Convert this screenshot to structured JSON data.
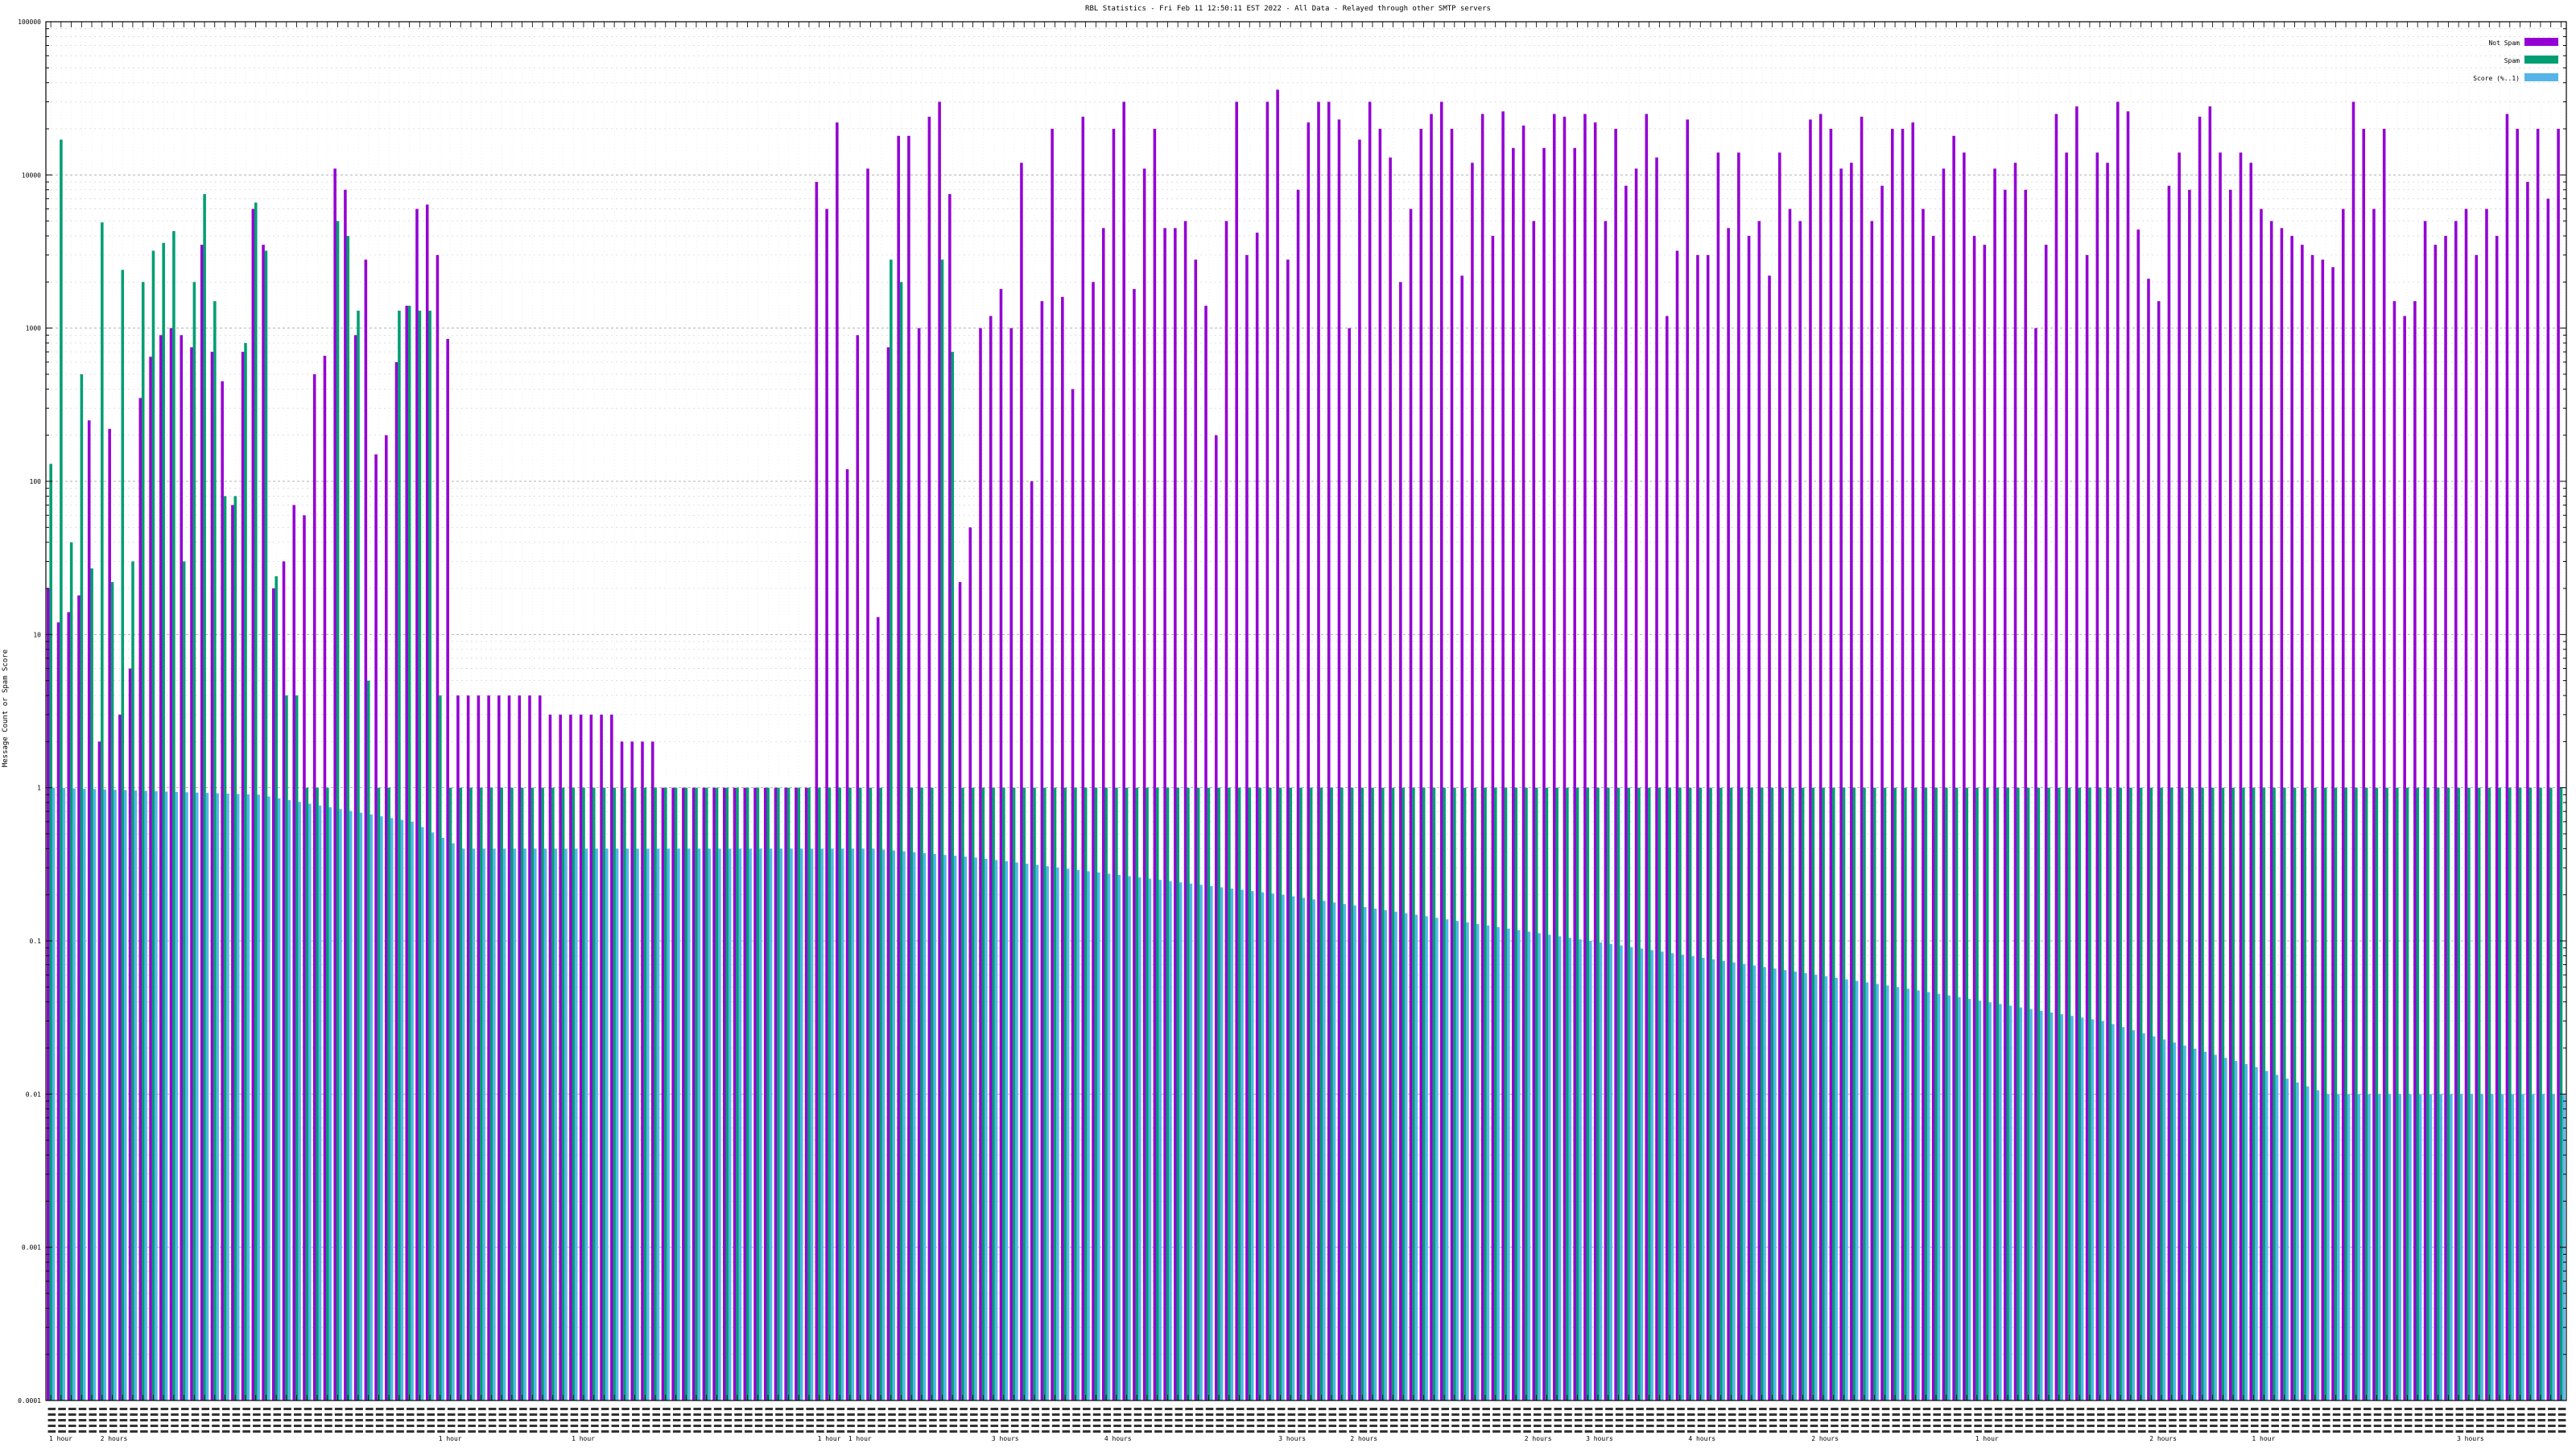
{
  "chart_data": {
    "type": "bar",
    "title": "RBL Statistics - Fri Feb 11 12:50:11 EST 2022 - All Data - Relayed through other SMTP servers",
    "xlabel": "",
    "ylabel": "Message Count or Spam Score",
    "scale": "log",
    "ylim": [
      0.0001,
      100000
    ],
    "y_ticks": [
      "0.0001",
      "0.001",
      "0.01",
      "0.1",
      "1",
      "10",
      "100",
      "1000",
      "10000",
      "100000"
    ],
    "grid": true,
    "legend_position": "top-right",
    "legend": [
      {
        "name": "Not Spam",
        "color": "#9400d3"
      },
      {
        "name": "Spam",
        "color": "#009e73"
      },
      {
        "name": "Score (%..1)",
        "color": "#56b4e9"
      }
    ],
    "x_labels_legible": false,
    "bottom_labels": [
      {
        "text": "1 hour",
        "group": 0
      },
      {
        "text": "2 hours",
        "group": 5
      },
      {
        "text": "1 hour",
        "group": 38
      },
      {
        "text": "1 hour",
        "group": 51
      },
      {
        "text": "1 hour",
        "group": 75
      },
      {
        "text": "1 hour",
        "group": 78
      },
      {
        "text": "3 hours",
        "group": 92
      },
      {
        "text": "4 hours",
        "group": 103
      },
      {
        "text": "3 hours",
        "group": 120
      },
      {
        "text": "2 hours",
        "group": 127
      },
      {
        "text": "2 hours",
        "group": 144
      },
      {
        "text": "3 hours",
        "group": 150
      },
      {
        "text": "4 hours",
        "group": 160
      },
      {
        "text": "2 hours",
        "group": 172
      },
      {
        "text": "1 hour",
        "group": 188
      },
      {
        "text": "2 hours",
        "group": 205
      },
      {
        "text": "1 hour",
        "group": 215
      },
      {
        "text": "3 hours",
        "group": 235
      },
      {
        "text": "4 hours",
        "group": 250
      },
      {
        "text": "1 hour",
        "group": 262
      }
    ],
    "series": [
      {
        "name": "Not Spam",
        "values": [
          20,
          12,
          14,
          18,
          250,
          2,
          220,
          3,
          6,
          350,
          650,
          900,
          1000,
          900,
          750,
          3500,
          700,
          450,
          70,
          700,
          6000,
          3500,
          20,
          30,
          70,
          60,
          500,
          660,
          11000,
          8000,
          900,
          2800,
          150,
          200,
          600,
          1400,
          6000,
          6400,
          3000,
          850,
          4,
          4,
          4,
          4,
          4,
          4,
          4,
          4,
          4,
          3,
          3,
          3,
          3,
          3,
          3,
          3,
          2,
          2,
          2,
          2,
          1,
          1,
          1,
          1,
          1,
          1,
          1,
          1,
          1,
          1,
          1,
          1,
          1,
          1,
          1,
          9000,
          6000,
          22000,
          120,
          900,
          11000,
          13,
          750,
          18000,
          18000,
          1000,
          24000,
          30000,
          7500,
          22,
          50,
          1000,
          1200,
          1800,
          1000,
          12000,
          100,
          1500,
          20000,
          1600,
          400,
          24000,
          2000,
          4500,
          20000,
          30000,
          1800,
          11000,
          20000,
          4500,
          4500,
          5000,
          2800,
          1400,
          200,
          5000,
          30000,
          3000,
          4200,
          30000,
          36000,
          2800,
          8000,
          22000,
          30000,
          30000,
          23000,
          1000,
          17000,
          30000,
          20000,
          13000,
          2000,
          6000,
          20000,
          25000,
          30000,
          20000,
          2200,
          12000,
          25000,
          4000,
          26000,
          15000,
          21000,
          5000,
          15000,
          25000,
          24000,
          15000,
          25000,
          22000,
          5000,
          20000,
          8500,
          11000,
          25000,
          13000,
          1200,
          3200,
          23000,
          3000,
          3000,
          14000,
          4500,
          14000,
          4000,
          5000,
          2200,
          14000,
          6000,
          5000,
          23000,
          25000,
          20000,
          11000,
          12000,
          24000,
          5000,
          8500,
          20000,
          20000,
          22000,
          6000,
          4000,
          11000,
          18000,
          14000,
          4000,
          3500,
          11000,
          8000,
          12000,
          8000,
          1000,
          3500,
          25000,
          14000,
          28000,
          3000,
          14000,
          12000,
          30000,
          26000,
          4400,
          2100,
          1500,
          8500,
          14000,
          8000,
          24000,
          28000,
          14000,
          8000,
          14000,
          12000,
          6000,
          5000,
          4500,
          4000,
          3500,
          3000,
          2800,
          2500,
          6000,
          30000,
          20000,
          6000,
          20000,
          1500,
          1200,
          1500,
          5000,
          3500,
          4000,
          5000,
          6000,
          3000,
          6000,
          4000,
          25000,
          20000,
          9000,
          20000,
          7000,
          20000
        ]
      },
      {
        "name": "Spam",
        "values": [
          130,
          17000,
          40,
          500,
          27,
          4900,
          22,
          2400,
          30,
          2000,
          3200,
          3600,
          4300,
          30,
          2000,
          7500,
          1500,
          80,
          80,
          800,
          6600,
          3200,
          24,
          4,
          4,
          1,
          1,
          1,
          5000,
          4000,
          1300,
          5,
          1,
          1,
          1300,
          1400,
          1300,
          1300,
          4,
          1,
          1,
          1,
          1,
          1,
          1,
          1,
          1,
          1,
          1,
          1,
          1,
          1,
          1,
          1,
          1,
          1,
          1,
          1,
          1,
          1,
          1,
          1,
          1,
          1,
          1,
          1,
          1,
          1,
          1,
          1,
          1,
          1,
          1,
          1,
          1,
          1,
          1,
          1,
          1,
          1,
          1,
          1,
          2800,
          2000,
          1,
          1,
          1,
          2800,
          700,
          1,
          1,
          1,
          1,
          1,
          1,
          1,
          1,
          1,
          1,
          1,
          1,
          1,
          1,
          1,
          1,
          1,
          1,
          1,
          1,
          1,
          1,
          1,
          1,
          1,
          1,
          1,
          1,
          1,
          1,
          1,
          1,
          1,
          1,
          1,
          1,
          1,
          1,
          1,
          1,
          1,
          1,
          1,
          1,
          1,
          1,
          1,
          1,
          1,
          1,
          1,
          1,
          1,
          1,
          1,
          1,
          1,
          1,
          1,
          1,
          1,
          1,
          1,
          1,
          1,
          1,
          1,
          1,
          1,
          1,
          1,
          1,
          1,
          1,
          1,
          1,
          1,
          1,
          1,
          1,
          1,
          1,
          1,
          1,
          1,
          1,
          1,
          1,
          1,
          1,
          1,
          1,
          1,
          1,
          1,
          1,
          1,
          1,
          1,
          1,
          1,
          1,
          1,
          1,
          1,
          1,
          1,
          1,
          1,
          1,
          1,
          1,
          1,
          1,
          1,
          1,
          1,
          1,
          1,
          1,
          1,
          1,
          1,
          1,
          1,
          1,
          1,
          1,
          1,
          1,
          1,
          1,
          1,
          1,
          1,
          1,
          1,
          1,
          1,
          1,
          1,
          1,
          1,
          1,
          1,
          1,
          1,
          1,
          1,
          1,
          1,
          1,
          1,
          1,
          1,
          1,
          1,
          1,
          1,
          1,
          1,
          1,
          1,
          1,
          1,
          1,
          1,
          1,
          1,
          1,
          1,
          1,
          1,
          1,
          1,
          1,
          1,
          1,
          1,
          1,
          1,
          1,
          1,
          1,
          1,
          1,
          1,
          1,
          1,
          1,
          1,
          1,
          1,
          1,
          1,
          1,
          1,
          1,
          1,
          1,
          1,
          1,
          1,
          1
        ]
      },
      {
        "name": "Score (%..1)",
        "values": [
          1,
          1,
          1,
          1,
          1,
          1,
          1,
          1,
          1,
          1,
          1,
          1,
          1,
          1,
          1,
          1,
          1,
          1,
          1,
          1,
          1,
          1,
          1,
          1,
          1,
          1,
          1,
          1,
          1,
          1,
          1,
          1,
          1,
          1,
          1,
          1,
          1,
          1,
          1,
          1,
          1,
          1,
          1,
          1,
          1,
          1,
          1,
          1,
          1,
          1,
          1,
          1,
          1,
          1,
          1,
          1,
          1,
          1,
          1,
          1,
          1,
          1,
          1,
          1,
          1,
          1,
          1,
          1,
          1,
          1,
          1,
          1,
          1,
          1,
          1,
          1,
          1,
          1,
          1,
          1,
          1,
          1,
          1,
          1,
          1,
          1,
          1,
          1,
          1,
          1,
          1,
          1,
          1,
          1,
          1,
          1,
          1,
          1,
          1,
          1,
          1,
          1,
          1,
          1,
          1,
          1,
          1,
          1,
          1,
          1,
          1,
          1,
          1,
          1,
          1,
          1,
          1,
          1,
          1,
          1,
          1,
          1,
          1,
          1,
          1,
          1,
          1,
          1,
          1,
          1,
          1,
          1,
          1,
          1,
          1,
          1,
          1,
          1,
          1,
          1,
          1,
          1,
          1,
          1,
          1,
          1,
          1,
          1,
          1,
          1,
          1,
          1,
          1,
          1,
          1,
          1,
          1,
          1,
          1,
          1,
          1,
          1,
          1,
          1,
          1,
          1,
          1,
          1,
          1,
          1,
          1,
          1,
          1,
          1,
          1,
          1,
          1,
          1,
          1,
          1,
          1,
          1,
          1,
          1,
          1,
          1,
          1,
          1,
          1,
          1,
          1,
          1,
          1,
          1,
          1,
          1,
          1,
          1,
          1,
          1,
          1,
          1,
          1,
          1,
          1,
          1,
          1,
          1,
          1,
          1,
          1,
          1,
          1,
          1,
          1,
          1,
          1,
          1,
          1,
          1,
          1,
          1,
          1,
          1,
          1,
          1,
          1,
          1,
          1,
          1,
          1,
          1,
          1,
          1,
          1,
          1,
          1,
          1,
          1,
          1,
          1,
          1,
          1,
          1,
          1,
          1,
          1,
          1,
          1,
          1,
          1,
          1,
          1,
          1,
          1,
          1,
          1,
          1,
          1,
          1,
          1,
          1,
          1,
          1,
          1,
          1,
          1,
          1,
          1,
          1,
          1,
          1,
          1,
          1,
          1,
          1,
          1,
          1,
          1,
          1,
          1
        ]
      }
    ],
    "score_profile": [
      [
        0,
        1.0
      ],
      [
        20,
        0.9
      ],
      [
        35,
        0.6
      ],
      [
        40,
        0.4
      ],
      [
        80,
        0.4
      ],
      [
        90,
        0.35
      ],
      [
        120,
        0.2
      ],
      [
        150,
        0.1
      ],
      [
        180,
        0.05
      ],
      [
        200,
        0.03
      ],
      [
        215,
        0.015
      ],
      [
        222,
        0.01
      ],
      [
        276,
        0.01
      ],
      [
        283,
        0.006
      ],
      [
        292,
        0.004
      ],
      [
        298,
        0.002
      ],
      [
        305,
        0.001
      ],
      [
        313,
        0.0009
      ]
    ]
  }
}
